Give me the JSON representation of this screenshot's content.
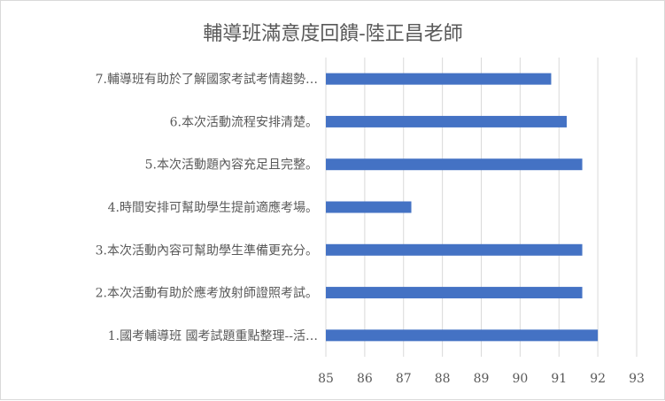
{
  "chart_data": {
    "type": "bar",
    "orientation": "horizontal",
    "title": "輔導班滿意度回饋-陸正昌老師",
    "categories": [
      "1.國考輔導班 國考試題重點整理--活…",
      "2.本次活動有助於應考放射師證照考試。",
      "3.本次活動內容可幫助學生準備更充分。",
      "4.時間安排可幫助學生提前適應考場。",
      "5.本次活動題內容充足且完整。",
      "6.本次活動流程安排清楚。",
      "7.輔導班有助於了解國家考試考情趨勢…"
    ],
    "values": [
      92.0,
      91.6,
      91.6,
      87.2,
      91.6,
      91.2,
      90.8
    ],
    "xlim": [
      85,
      93
    ],
    "xticks": [
      85,
      86,
      87,
      88,
      89,
      90,
      91,
      92,
      93
    ],
    "grid": "vertical",
    "bar_color": "#4472c4",
    "legend": "none"
  }
}
